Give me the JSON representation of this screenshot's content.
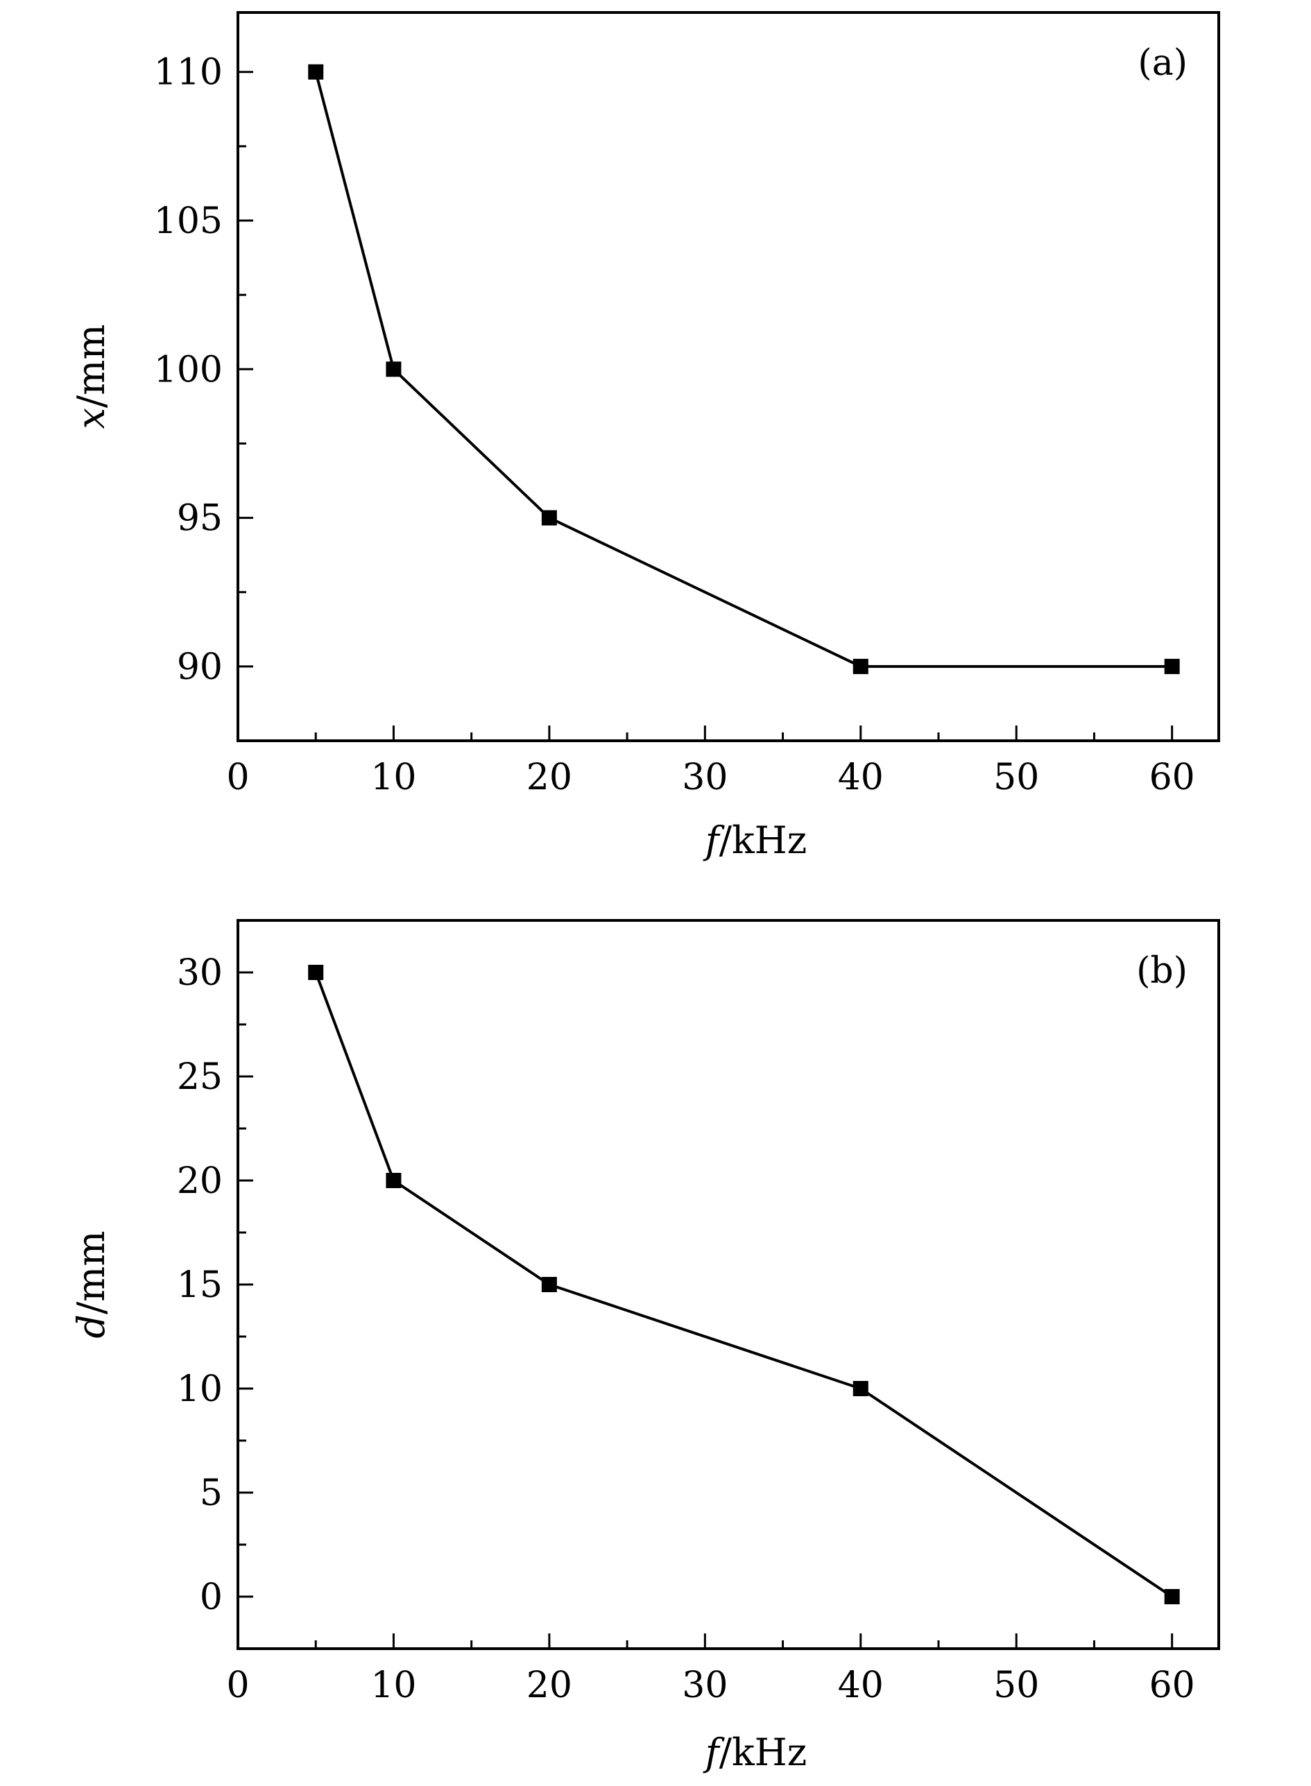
{
  "chart_data": [
    {
      "type": "line",
      "panel_label": "(a)",
      "title": "",
      "xlabel": "f/kHz",
      "ylabel": "x/mm",
      "xlim": [
        0,
        63
      ],
      "ylim": [
        87.5,
        112
      ],
      "x_ticks": [
        0,
        10,
        20,
        30,
        40,
        50,
        60
      ],
      "y_ticks": [
        90,
        95,
        100,
        105,
        110
      ],
      "x_minor_step": 5,
      "y_minor_step": 2.5,
      "grid": false,
      "marker": "filled-square",
      "color": "#000000",
      "series": [
        {
          "x": [
            5,
            10,
            20,
            40,
            60
          ],
          "y": [
            110,
            100,
            95,
            90,
            90
          ]
        }
      ]
    },
    {
      "type": "line",
      "panel_label": "(b)",
      "title": "",
      "xlabel": "f/kHz",
      "ylabel": "d/mm",
      "xlim": [
        0,
        63
      ],
      "ylim": [
        -2.5,
        32.5
      ],
      "x_ticks": [
        0,
        10,
        20,
        30,
        40,
        50,
        60
      ],
      "y_ticks": [
        0,
        5,
        10,
        15,
        20,
        25,
        30
      ],
      "x_minor_step": 5,
      "y_minor_step": 2.5,
      "grid": false,
      "marker": "filled-square",
      "color": "#000000",
      "series": [
        {
          "x": [
            5,
            10,
            20,
            40,
            60
          ],
          "y": [
            30,
            20,
            15,
            10,
            0
          ]
        }
      ]
    }
  ]
}
